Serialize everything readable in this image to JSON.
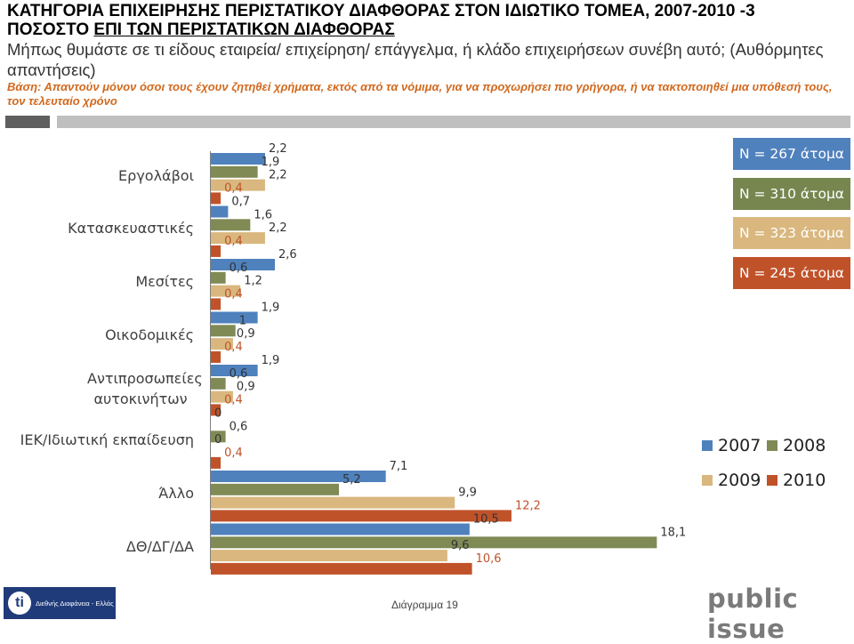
{
  "title": {
    "line1": "ΚΑΤΗΓΟΡΙΑ ΕΠΙΧΕΙΡΗΣΗΣ ΠΕΡΙΣΤΑΤΙΚΟΥ ΔΙΑΦΘΟΡΑΣ ΣΤΟΝ ΙΔΙΩΤΙΚΟ ΤΟΜΕΑ, 2007-2010 -3",
    "line2_plain": "ΠΟΣΟΣΤΟ ",
    "line2_underlined": "ΕΠΙ ΤΩΝ ΠΕΡΙΣΤΑΤΙΚΩΝ ΔΙΑΦΘΟΡΑΣ"
  },
  "subtitle": "Μήπως θυμάστε σε τι είδους εταιρεία/ επιχείρηση/ επάγγελμα, ή κλάδο επιχειρήσεων συνέβη αυτό; (Αυθόρμητες απαντήσεις)",
  "basis": "Βάση: Απαντούν μόνον όσοι τους έχουν ζητηθεί χρήματα, εκτός από τα νόμιμα, για να προχωρήσει πιο γρήγορα, ή να τακτοποιηθεί μια υπόθεσή τους, τον τελευταίο χρόνο",
  "colors": {
    "2007": "#4f81bd",
    "2008": "#7f8a55",
    "2009": "#d9b77e",
    "2010": "#c0522a",
    "n_box_2007": "#4f81bd",
    "n_box_2008": "#77864f",
    "n_box_2009": "#d9b77e",
    "n_box_2010": "#c0522a"
  },
  "sample_sizes": [
    "N = 267 άτομα",
    "N = 310 άτομα",
    "N = 323 άτομα",
    "N = 245 άτομα"
  ],
  "legend": [
    "2007",
    "2008",
    "2009",
    "2010"
  ],
  "chart_data": {
    "type": "bar",
    "orientation": "horizontal",
    "categories": [
      "Εργολάβοι",
      "Κατασκευαστικές",
      "Μεσίτες",
      "Οικοδομικές",
      "Αντιπροσωπείες αυτοκινήτων",
      "ΙΕΚ/Ιδιωτική εκπαίδευση",
      "Άλλο",
      "ΔΘ/ΔΓ/ΔΑ"
    ],
    "series": [
      {
        "name": "2007",
        "values": [
          2.2,
          0.7,
          2.6,
          1.9,
          1.9,
          0,
          7.1,
          10.5
        ],
        "labels": [
          "2,2",
          "0,7",
          "2,6",
          "1,9",
          "1,9",
          "0",
          "7,1",
          "10,5"
        ]
      },
      {
        "name": "2008",
        "values": [
          1.9,
          1.6,
          0.6,
          1,
          0.6,
          0.6,
          5.2,
          18.1
        ],
        "labels": [
          "1,9",
          "1,6",
          "0,6",
          "1",
          "0,6",
          "0,6",
          "5,2",
          "18,1"
        ]
      },
      {
        "name": "2009",
        "values": [
          2.2,
          2.2,
          1.2,
          0.9,
          0.9,
          0,
          9.9,
          9.6
        ],
        "labels": [
          "2,2",
          "2,2",
          "1,2",
          "0,9",
          "0,9",
          "0",
          "9,9",
          "9,6"
        ]
      },
      {
        "name": "2010",
        "values": [
          0.4,
          0.4,
          0.4,
          0.4,
          0.4,
          0.4,
          12.2,
          10.6
        ],
        "labels": [
          "0,4",
          "0,4",
          "0,4",
          "0,4",
          "0,4",
          "0,4",
          "12,2",
          "10,6"
        ]
      }
    ],
    "title": "ΚΑΤΗΓΟΡΙΑ ΕΠΙΧΕΙΡΗΣΗΣ ΠΕΡΙΣΤΑΤΙΚΟΥ ΔΙΑΦΘΟΡΑΣ ΣΤΟΝ ΙΔΙΩΤΙΚΟ ΤΟΜΕΑ, 2007-2010",
    "xlabel": "",
    "ylabel": "",
    "xlim": [
      0,
      20
    ],
    "legend_position": "bottom-right",
    "grid": false
  },
  "footer": {
    "logo_text": "Διεθνής Διαφάνεια - Ελλάς",
    "diagram_label": "Διάγραμμα 19",
    "brand": "public issue"
  }
}
